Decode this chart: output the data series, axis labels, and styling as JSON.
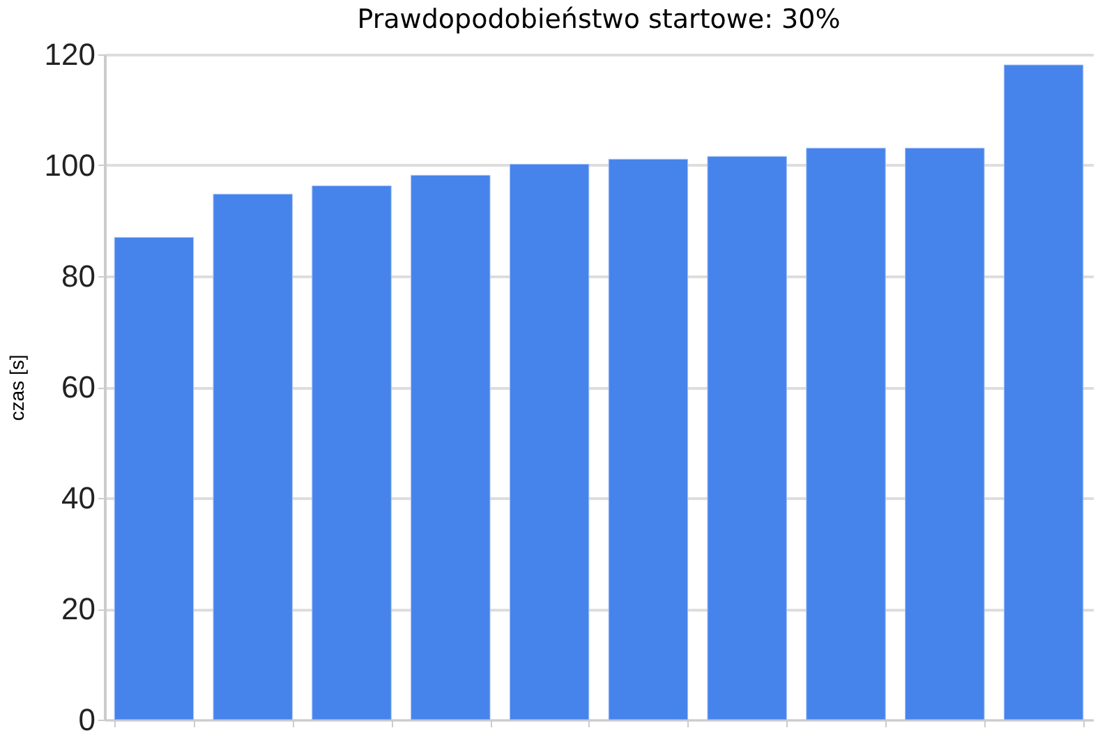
{
  "chart_data": {
    "type": "bar",
    "title": "Prawdopodobieństwo startowe: 30%",
    "ylabel": "czas [s]",
    "categories": [
      null,
      null,
      null,
      null,
      null,
      null,
      null,
      null,
      null,
      null
    ],
    "values": [
      87,
      94.8,
      96.3,
      98.2,
      100.2,
      101.1,
      101.6,
      103.1,
      103.1,
      118.1
    ],
    "color": "#4684ec",
    "ylim": [
      0,
      120
    ],
    "yticks": [
      0,
      20,
      40,
      60,
      80,
      100,
      120
    ],
    "grid": "y",
    "tick_labels": "y"
  }
}
